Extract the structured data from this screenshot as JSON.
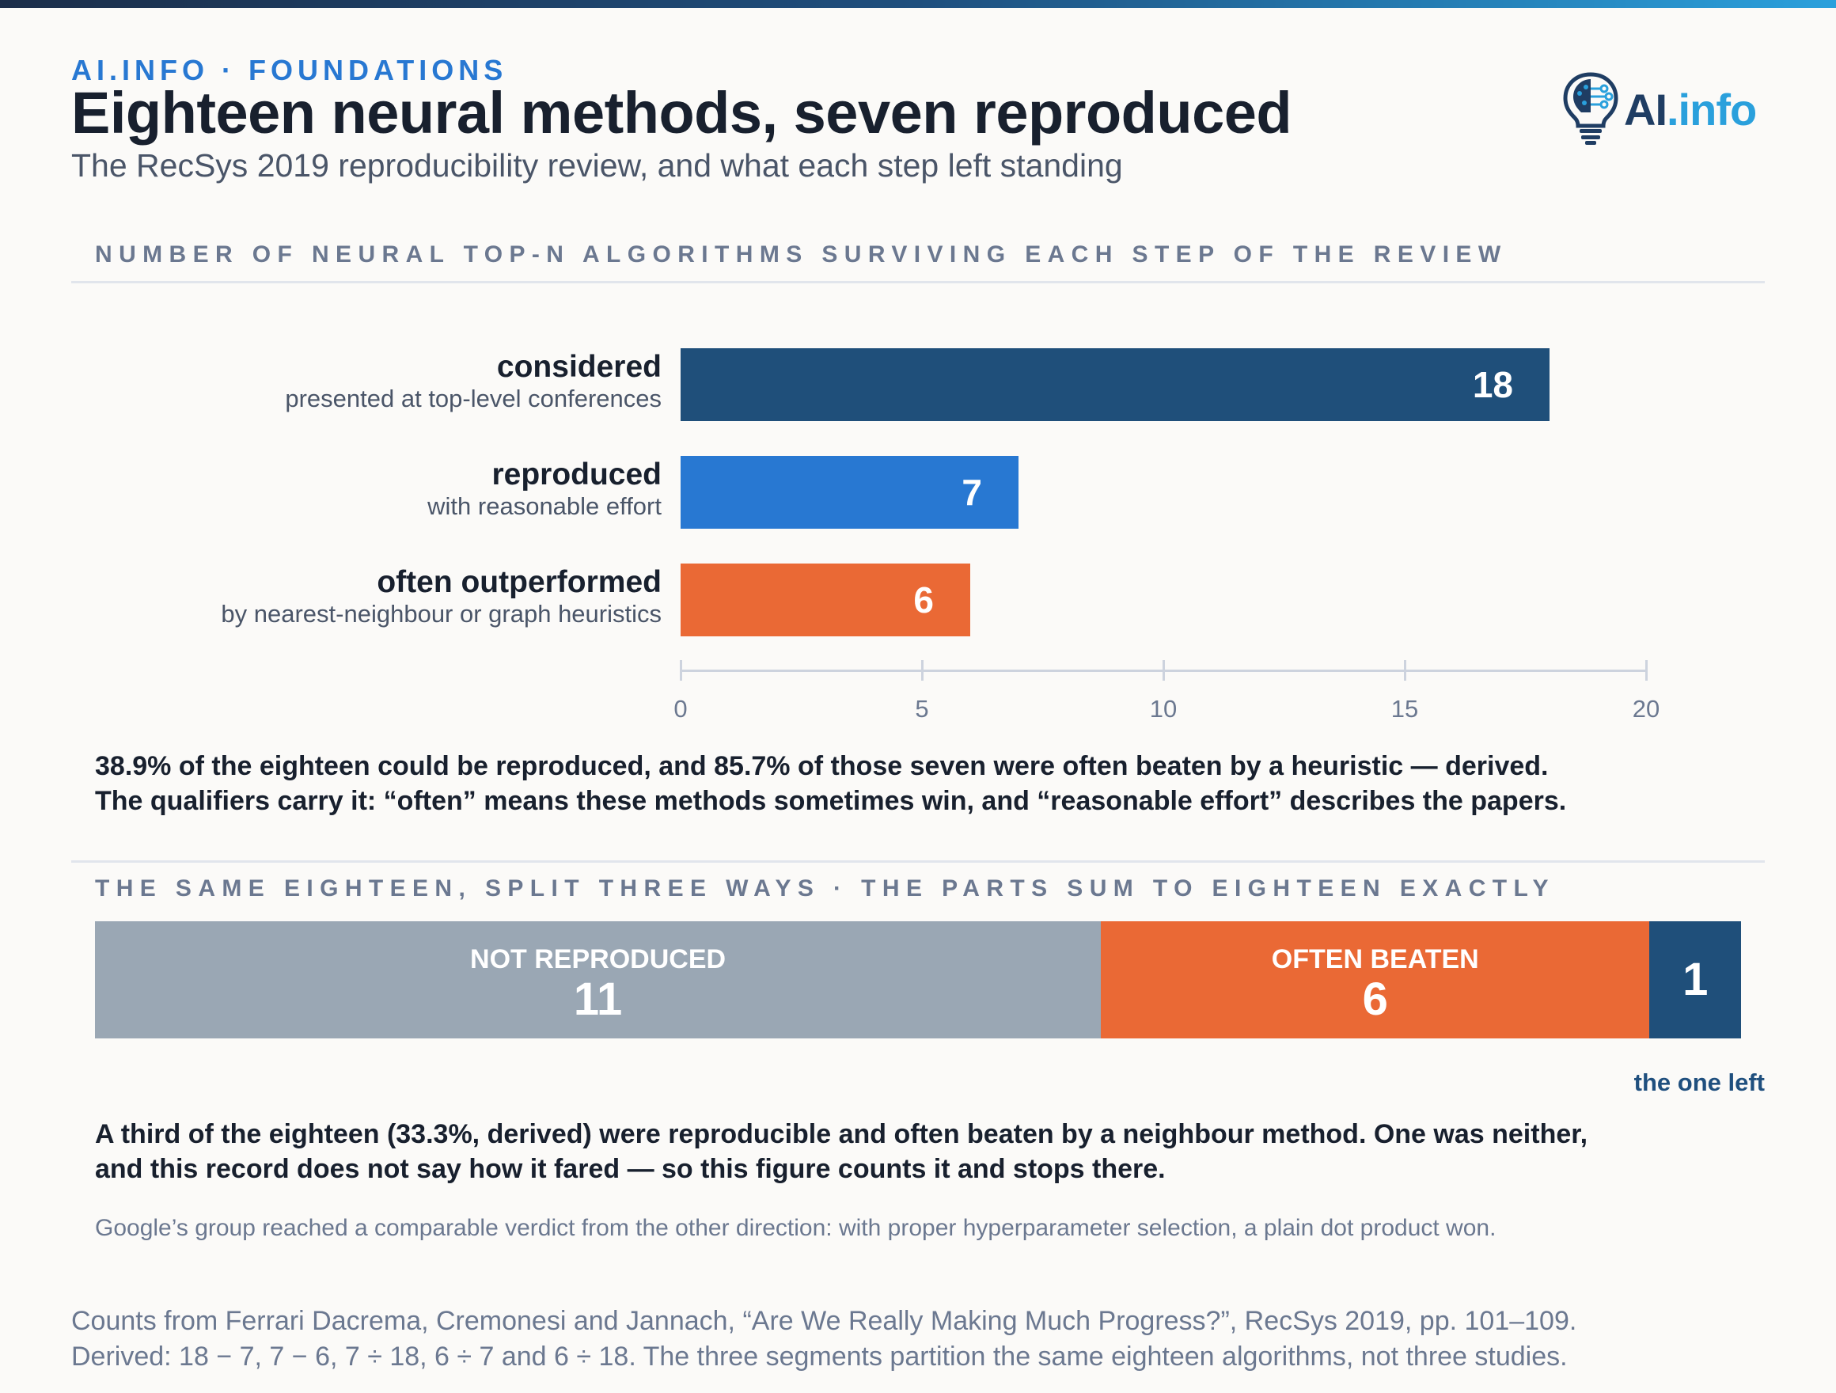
{
  "header": {
    "kicker": "AI.INFO · FOUNDATIONS",
    "title": "Eighteen neural methods, seven reproduced",
    "subtitle": "The RecSys 2019 reproducibility review, and what each step left standing",
    "logo_text": "AI",
    "logo_ext": ".info"
  },
  "colors": {
    "considered": "#1f4f7a",
    "reproduced": "#2878d2",
    "often_outperformed": "#ea6935",
    "not_reproduced": "#9aa7b4",
    "one_left": "#1f4f7a"
  },
  "chart_data": [
    {
      "type": "bar",
      "orientation": "horizontal",
      "title": "NUMBER OF NEURAL TOP-N ALGORITHMS SURVIVING EACH STEP OF THE REVIEW",
      "categories": [
        "considered",
        "reproduced",
        "often outperformed"
      ],
      "category_notes": [
        "presented at top-level conferences",
        "with reasonable effort",
        "by nearest-neighbour or graph heuristics"
      ],
      "values": [
        18,
        7,
        6
      ],
      "data_labels": [
        "18",
        "7",
        "6"
      ],
      "xlim": [
        0,
        20
      ],
      "xticks": [
        0,
        5,
        10,
        15,
        20
      ],
      "grid": false
    },
    {
      "type": "bar",
      "orientation": "horizontal-stacked",
      "title": "THE SAME EIGHTEEN, SPLIT THREE WAYS · THE PARTS SUM TO EIGHTEEN EXACTLY",
      "segments": [
        {
          "name": "NOT REPRODUCED",
          "value": 11,
          "label": "11"
        },
        {
          "name": "OFTEN BEATEN",
          "value": 6,
          "label": "6"
        },
        {
          "name": "",
          "value": 1,
          "label": "1"
        }
      ],
      "total": 18,
      "annotation": "the one left"
    }
  ],
  "notes": {
    "chart1_line1": "38.9% of the eighteen could be reproduced, and 85.7% of those seven were often beaten by a heuristic — derived.",
    "chart1_line2": "The qualifiers carry it: “often” means these methods sometimes win, and “reasonable effort” describes the papers.",
    "chart2_line1": "A third of the eighteen (33.3%, derived) were reproducible and often beaten by a neighbour method. One was neither,",
    "chart2_line2": "and this record does not say how it fared — so this figure counts it and stops there.",
    "aside": "Google’s group reached a comparable verdict from the other direction: with proper hyperparameter selection, a plain dot product won."
  },
  "source": {
    "line1": "Counts from Ferrari Dacrema, Cremonesi and Jannach, “Are We Really Making Much Progress?”, RecSys 2019, pp. 101–109.",
    "line2": "Derived: 18 − 7, 7 − 6, 7 ÷ 18, 6 ÷ 7 and 6 ÷ 18. The three segments partition the same eighteen algorithms, not three studies."
  }
}
